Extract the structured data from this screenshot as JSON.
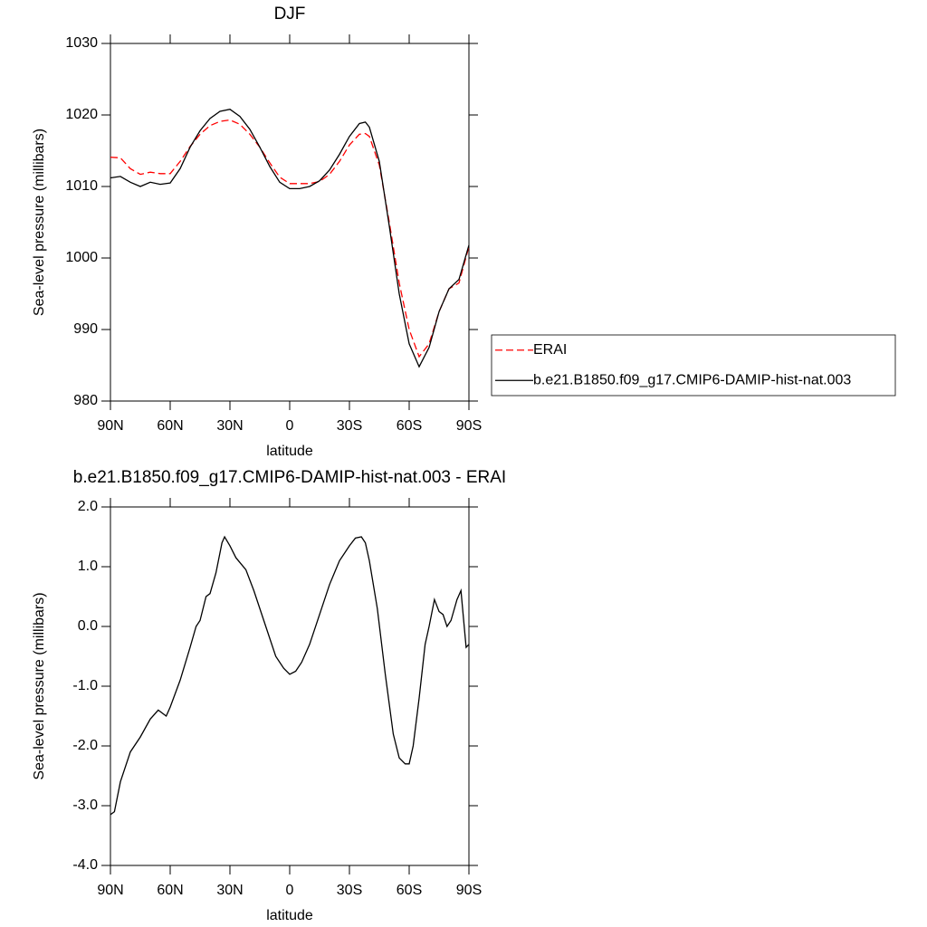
{
  "chart_data": [
    {
      "type": "line",
      "title": "DJF",
      "xlabel": "latitude",
      "ylabel": "Sea-level pressure (millibars)",
      "xlim": [
        90,
        -90
      ],
      "xticks": [
        {
          "value": 90,
          "label": "90N"
        },
        {
          "value": 60,
          "label": "60N"
        },
        {
          "value": 30,
          "label": "30N"
        },
        0,
        {
          "value": -30,
          "label": "30S"
        },
        {
          "value": -60,
          "label": "60S"
        },
        {
          "value": -90,
          "label": "90S"
        }
      ],
      "ylim": [
        980,
        1030
      ],
      "yticks": [
        980,
        990,
        1000,
        1010,
        1020,
        1030
      ],
      "x": [
        90,
        85,
        80,
        75,
        70,
        65,
        60,
        55,
        50,
        45,
        40,
        35,
        30,
        25,
        20,
        15,
        10,
        5,
        0,
        -5,
        -10,
        -15,
        -20,
        -25,
        -30,
        -35,
        -38,
        -40,
        -45,
        -50,
        -55,
        -60,
        -65,
        -70,
        -75,
        -80,
        -85,
        -90
      ],
      "series": [
        {
          "name": "ERAI",
          "color": "#ff0000",
          "dash": true,
          "values": [
            1014.1,
            1014,
            1012.5,
            1011.7,
            1012,
            1011.8,
            1011.8,
            1013.5,
            1015.6,
            1017.3,
            1018.5,
            1019.1,
            1019.3,
            1018.7,
            1017.3,
            1015.5,
            1013.3,
            1011.3,
            1010.4,
            1010.4,
            1010.4,
            1010.7,
            1011.7,
            1013.5,
            1015.8,
            1017.3,
            1017.4,
            1017,
            1013,
            1005,
            996.5,
            990,
            986.2,
            988,
            992.5,
            995.7,
            996.5,
            1001.6
          ]
        },
        {
          "name": "b.e21.B1850.f09_g17.CMIP6-DAMIP-hist-nat.003",
          "color": "#000000",
          "dash": false,
          "values": [
            1011.2,
            1011.4,
            1010.6,
            1010,
            1010.6,
            1010.3,
            1010.5,
            1012.5,
            1015.5,
            1017.8,
            1019.5,
            1020.5,
            1020.8,
            1019.8,
            1018,
            1015.5,
            1012.8,
            1010.6,
            1009.7,
            1009.7,
            1010,
            1010.8,
            1012.3,
            1014.5,
            1017,
            1018.8,
            1019,
            1018.3,
            1013.5,
            1004.5,
            995,
            988,
            984.8,
            987.5,
            992.5,
            995.7,
            997,
            1001.8
          ]
        }
      ]
    },
    {
      "type": "line",
      "title": "b.e21.B1850.f09_g17.CMIP6-DAMIP-hist-nat.003 - ERAI",
      "xlabel": "latitude",
      "ylabel": "Sea-level pressure (millibars)",
      "xlim": [
        90,
        -90
      ],
      "xticks": [
        {
          "value": 90,
          "label": "90N"
        },
        {
          "value": 60,
          "label": "60N"
        },
        {
          "value": 30,
          "label": "30N"
        },
        0,
        {
          "value": -30,
          "label": "30S"
        },
        {
          "value": -60,
          "label": "60S"
        },
        {
          "value": -90,
          "label": "90S"
        }
      ],
      "ylim": [
        -4,
        2
      ],
      "yticks": [
        {
          "value": -4,
          "label": "-4.0"
        },
        {
          "value": -3,
          "label": "-3.0"
        },
        {
          "value": -2,
          "label": "-2.0"
        },
        {
          "value": -1,
          "label": "-1.0"
        },
        {
          "value": 0,
          "label": "0.0"
        },
        {
          "value": 1,
          "label": "1.0"
        },
        {
          "value": 2,
          "label": "2.0"
        }
      ],
      "x": [
        90,
        88,
        85,
        80,
        75,
        70,
        66,
        62,
        60,
        55,
        50,
        47,
        45,
        42,
        40,
        37,
        34,
        32.7,
        30,
        27,
        22,
        18,
        12,
        7,
        3,
        0,
        -3,
        -6,
        -10,
        -14,
        -20,
        -25,
        -30,
        -33,
        -36,
        -38,
        -40,
        -44,
        -48,
        -52,
        -55,
        -58,
        -60,
        -62,
        -65,
        -68,
        -70,
        -72.7,
        -75,
        -77,
        -79,
        -81,
        -84,
        -86,
        -88.6,
        -90
      ],
      "color": "#000000",
      "values": [
        -3.15,
        -3.1,
        -2.6,
        -2.1,
        -1.85,
        -1.55,
        -1.4,
        -1.5,
        -1.35,
        -0.9,
        -0.35,
        0,
        0.1,
        0.5,
        0.55,
        0.9,
        1.4,
        1.5,
        1.35,
        1.15,
        0.95,
        0.6,
        0,
        -0.5,
        -0.7,
        -0.8,
        -0.75,
        -0.6,
        -0.3,
        0.1,
        0.7,
        1.1,
        1.35,
        1.48,
        1.5,
        1.4,
        1.1,
        0.3,
        -0.8,
        -1.8,
        -2.2,
        -2.3,
        -2.3,
        -2,
        -1.2,
        -0.3,
        0,
        0.45,
        0.25,
        0.2,
        0,
        0.1,
        0.45,
        0.6,
        -0.35,
        -0.3
      ]
    }
  ]
}
